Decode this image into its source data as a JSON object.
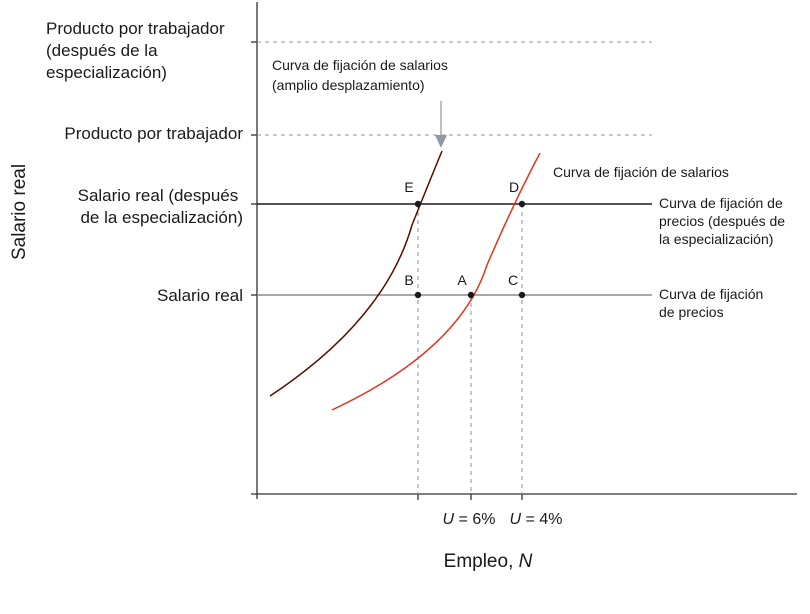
{
  "axes": {
    "y_label": "Salario real",
    "x_label_text": "Empleo, ",
    "x_label_var": "N"
  },
  "y_levels": {
    "prod_after": [
      "Producto por trabajador",
      "(después de la",
      "especialización)"
    ],
    "prod": "Producto por trabajador",
    "wage_after": [
      "Salario real (después",
      "de la especialización)"
    ],
    "wage": "Salario real"
  },
  "curves": {
    "wage_setting_label": "Curva de fijación de salarios",
    "shifted_wage_label": [
      "Curva de fijación de salarios",
      "(amplio desplazamiento)"
    ],
    "price_after_label": [
      "Curva de fijación de",
      "precios (después de",
      "la especialización)"
    ],
    "price_label": [
      "Curva de fijación",
      "de precios"
    ]
  },
  "points": {
    "A": "A",
    "B": "B",
    "C": "C",
    "D": "D",
    "E": "E"
  },
  "ticks": {
    "u6_var": "U",
    "u6_rest": " = 6%",
    "u4_var": "U",
    "u4_rest": " = 4%"
  },
  "colors": {
    "wage_setting_curve": "#e8341c",
    "shifted_wage_curve": "#5c0a00",
    "price_after_line": "#1a1a1a",
    "price_line": "#8a8a8a",
    "dashed_guides": "#8f9aa3",
    "axes": "#333333"
  }
}
